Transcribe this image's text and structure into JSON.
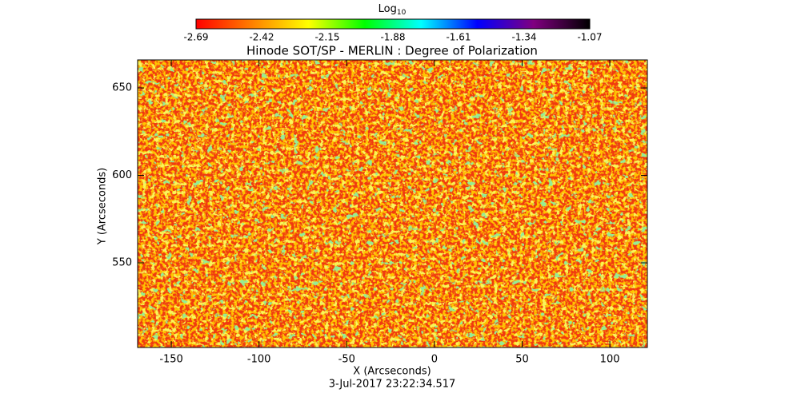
{
  "chart_data": {
    "type": "heatmap",
    "title": "Hinode SOT/SP - MERLIN : Degree of Polarization",
    "x_label": "X (Arcseconds)",
    "y_label": "Y (Arcseconds)",
    "date": "3-Jul-2017 23:22:34.517",
    "colorbar_label": "Log",
    "colorbar_label_sub": "10",
    "colorbar_lim": [
      -2.69,
      -1.07
    ],
    "colorbar_ticks": [
      -2.69,
      -2.42,
      -2.15,
      -1.88,
      -1.61,
      -1.34,
      -1.07
    ],
    "colorscale": [
      "#ff0000",
      "#ff8000",
      "#ffff00",
      "#00ff00",
      "#00ffff",
      "#0000ff",
      "#800080",
      "#000000"
    ],
    "xlim": [
      -169.2,
      121.4
    ],
    "xticks": [
      -150,
      -100,
      -50,
      0,
      50,
      100
    ],
    "ylim": [
      501.6,
      666
    ],
    "yticks": [
      550,
      600,
      650
    ]
  }
}
